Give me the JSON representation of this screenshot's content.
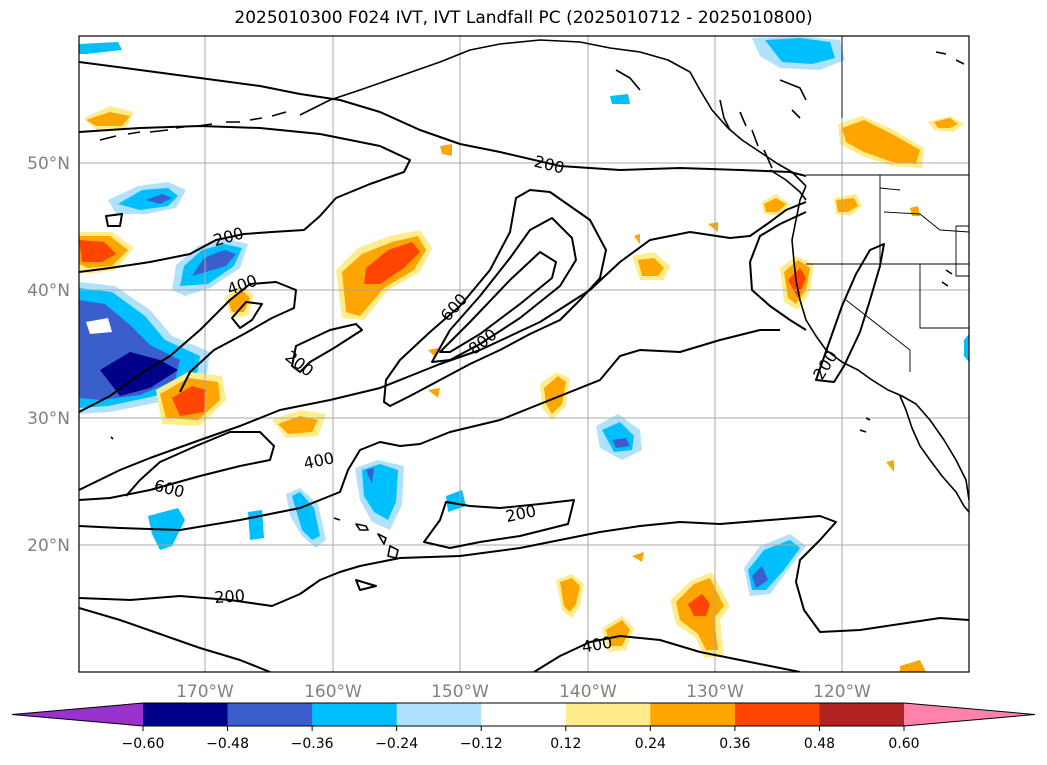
{
  "title": "2025010300 F024 IVT, IVT Landfall PC (2025010712 - 2025010800)",
  "lat_labels": [
    "50°N",
    "40°N",
    "30°N",
    "20°N"
  ],
  "lon_labels": [
    "170°W",
    "160°W",
    "150°W",
    "140°W",
    "130°W",
    "120°W"
  ],
  "contour_labels": [
    "200",
    "200",
    "400",
    "200",
    "600",
    "800",
    "400",
    "600",
    "200",
    "200",
    "400",
    "200"
  ],
  "colorbar": {
    "ticks": [
      "−0.60",
      "−0.48",
      "−0.36",
      "−0.24",
      "−0.12",
      "0.12",
      "0.24",
      "0.36",
      "0.48",
      "0.60"
    ],
    "colors": [
      "#9932cc",
      "#00008b",
      "#3a5fcd",
      "#00bfff",
      "#b0e2ff",
      "#ffffff",
      "#ffec8b",
      "#ffa500",
      "#ff4500",
      "#b22222",
      "#ff82ab"
    ]
  },
  "shading_colors": {
    "neg_light": "#b0e2ff",
    "neg_mid": "#00bfff",
    "neg_strong": "#3a5fcd",
    "neg_max": "#00008b",
    "pos_light": "#ffec8b",
    "pos_mid": "#ffa500",
    "pos_strong": "#ff4500"
  }
}
